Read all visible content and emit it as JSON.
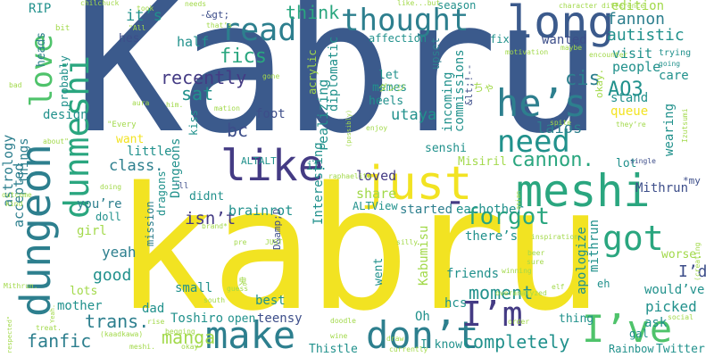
{
  "words": {
    "kabru_top": "Kabru",
    "kabru_bottom": "kabru",
    "just": "just",
    "like": "like",
    "dungeon": "dungeon",
    "dunmeshi": "dunmeshi",
    "love": "love",
    "read": "read",
    "thought": "thought",
    "long": "long",
    "hes": "he’s",
    "need": "need",
    "meshi": "meshi",
    "make": "make",
    "dont": "don’t",
    "im": "I’m",
    "ive": "I’ve",
    "got": "got",
    "think": "think",
    "fics": "fics",
    "recently": "recently",
    "sat": "sat",
    "bc": "bc",
    "foot": "foot",
    "class": "class.",
    "cannon": "cannon.",
    "forgot": "forgot",
    "fanfic": "fanfic",
    "trans": "trans.",
    "manga": "manga",
    "completely": "completely",
    "moment": "moment",
    "isnt": "isn’t",
    "good": "good",
    "yeah": "yeah",
    "accepted": "accepted",
    "astrology": "astrology",
    "things": "things",
    "design": "design",
    "probably": "probably",
    "heads": "heads",
    "rip": "RIP",
    "its": "it’s",
    "half": "half",
    "hes2": "hes",
    "fannon": "fannon",
    "autistic": "autistic",
    "edition": "edition",
    "wanted": "wanted",
    "visit": "visit",
    "people": "people",
    "care": "care",
    "cis": "cis",
    "ao3": "AO3",
    "laios": "laios",
    "stand": "stand",
    "queue": "queue",
    "wearing": "wearing",
    "utaya": "utaya",
    "heels": "heels",
    "memes": "memes",
    "let": "let",
    "commissions": "commissions",
    "incoming": "incoming",
    "upset": "upset",
    "fix": "fix",
    "affection": "affection",
    "realizing": "realizing",
    "diplomatic": "diplomatic",
    "interesting": "Interesting",
    "acrylic": "acrylic",
    "senshi": "senshi",
    "loved": "loved",
    "share": "share",
    "started": "started",
    "eachother": "eachother",
    "mithrun": "Mithrun",
    "mithrun2": "mithrun",
    "apologize": "apologize",
    "kabumisu": "Kabumisu",
    "theres": "there’s",
    "went": "went",
    "friends": "friends",
    "hcs": "hcs",
    "oh": "Oh",
    "iknow": "I know",
    "picked": "picked",
    "wouldve": "would’ve",
    "ask": "ask",
    "gal": "gal",
    "rainbow": "Rainbow",
    "twitter": "Twitter",
    "worse": "worse.",
    "eh": "eh",
    "id": "I’d",
    "brainrot": "brainrot",
    "didnt": "didnt",
    "dragons": "dragons",
    "mission": "mission",
    "dungeons": "Dungeons",
    "little": "little",
    "want": "want",
    "kiss": "kiss",
    "doll": "doll",
    "youre": "you’re",
    "girl": "girl",
    "lots": "lots",
    "mother": "mother",
    "dad": "dad",
    "small": "small",
    "best": "best",
    "toshiro": "Toshiro",
    "teensy": "teensy",
    "open": "open",
    "thistle": "Thistle",
    "thing": "thing",
    "misiril": "Misiril",
    "lot": "lot",
    "it": "it.",
    "altalt": "ALTALT",
    "altview": "ALTView",
    "damp": "D&amp;D",
    "season": "season",
    "okay": "okay.",
    "chanmono": "ちゃ",
    "dash": "-",
    "ltgt": "&lt;!--",
    "star": "*my",
    "smallwords": {
      "chilchuck": "chilchuck",
      "took": "took",
      "needs": "needs",
      "character": "character",
      "different": "difference",
      "all": "\"All",
      "gtgt": "-&gt;",
      "thats": "that’s",
      "likebut": "like...but",
      "motivation": "motivation",
      "maybe": "maybe",
      "encounter": "encounter",
      "trying": "trying",
      "going": "going",
      "bit": "bit",
      "bad": "bad",
      "gone": "gone",
      "aura": "aura",
      "him": "him.",
      "mation": "mation",
      "every": "\"Every",
      "about": "about\"",
      "enjoy": "enjoy",
      "possibly": "(possibly)",
      "spite": "spite",
      "theyre": "they’re",
      "izutsumi": "Izutsumi",
      "single": "single",
      "outcome": "outcome",
      "kind": "kind",
      "ll": "'ll",
      "doing": "doing",
      "raphaelite": "raphaelite",
      "inspiration": "inspiration",
      "beer": "beer",
      "sure": "sure",
      "creating": "(creating",
      "brand": "brand*",
      "pre": "pre",
      "justw": "JUST",
      "silly": "silly",
      "winning": "winning",
      "elf": "elf",
      "asian": "asian",
      "guess": "guess",
      "south": "south",
      "yeah2": "Yeah.",
      "mithrun3": "Mithrun.",
      "treat": "treat.",
      "respected": "respected\"",
      "rise": "rise",
      "begging": "begging",
      "kaadkawa": "(kaadkawa)",
      "okay2": "okay",
      "meshi2": "meshi.",
      "wine": "wine",
      "doodle": "doodle",
      "draw": "draw",
      "currently": "currently",
      "order": "order",
      "social": "social",
      "overanalyzed": "overanalyzed",
      "kanji": "鬼",
      "jp": "ダンジ"
    }
  }
}
